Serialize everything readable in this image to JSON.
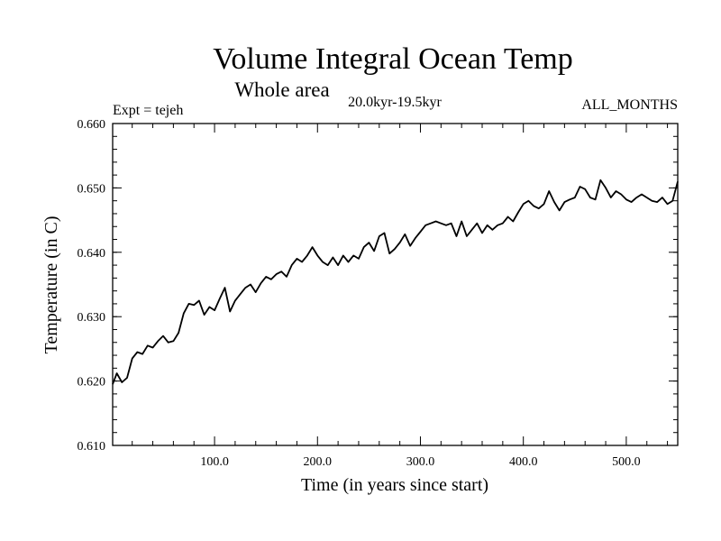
{
  "chart_data": {
    "type": "line",
    "title": "Volume Integral Ocean Temp",
    "subtitle": "Whole area",
    "period_label": "20.0kyr-19.5kyr",
    "left_annotation": "Expt = tejeh",
    "right_annotation": "ALL_MONTHS",
    "xlabel": "Time (in years since start)",
    "ylabel": "Temperature (in C)",
    "xlim": [
      1,
      550
    ],
    "ylim": [
      0.61,
      0.66
    ],
    "x_ticks": [
      100,
      200,
      300,
      400,
      500
    ],
    "x_tick_labels": [
      "100.0",
      "200.0",
      "300.0",
      "400.0",
      "500.0"
    ],
    "y_ticks": [
      0.61,
      0.62,
      0.63,
      0.64,
      0.65,
      0.66
    ],
    "y_tick_labels": [
      "0.610",
      "0.620",
      "0.630",
      "0.640",
      "0.650",
      "0.660"
    ],
    "line_color": "#000000",
    "series": [
      {
        "name": "Volume integral ocean temperature",
        "x": [
          1,
          5,
          10,
          15,
          20,
          25,
          30,
          35,
          40,
          45,
          50,
          55,
          60,
          65,
          70,
          75,
          80,
          85,
          90,
          95,
          100,
          105,
          110,
          115,
          120,
          125,
          130,
          135,
          140,
          145,
          150,
          155,
          160,
          165,
          170,
          175,
          180,
          185,
          190,
          195,
          200,
          205,
          210,
          215,
          220,
          225,
          230,
          235,
          240,
          245,
          250,
          255,
          260,
          265,
          270,
          275,
          280,
          285,
          290,
          295,
          300,
          305,
          310,
          315,
          320,
          325,
          330,
          335,
          340,
          345,
          350,
          355,
          360,
          365,
          370,
          375,
          380,
          385,
          390,
          395,
          400,
          405,
          410,
          415,
          420,
          425,
          430,
          435,
          440,
          445,
          450,
          455,
          460,
          465,
          470,
          475,
          480,
          485,
          490,
          495,
          500,
          505,
          510,
          515,
          520,
          525,
          530,
          535,
          540,
          545,
          550
        ],
        "values": [
          0.6195,
          0.6212,
          0.6198,
          0.6205,
          0.6235,
          0.6245,
          0.6242,
          0.6255,
          0.6252,
          0.6262,
          0.627,
          0.626,
          0.6262,
          0.6275,
          0.6305,
          0.632,
          0.6318,
          0.6325,
          0.6303,
          0.6315,
          0.631,
          0.6328,
          0.6345,
          0.6308,
          0.6325,
          0.6335,
          0.6345,
          0.635,
          0.6338,
          0.6352,
          0.6362,
          0.6358,
          0.6366,
          0.637,
          0.6362,
          0.638,
          0.639,
          0.6385,
          0.6395,
          0.6408,
          0.6395,
          0.6385,
          0.638,
          0.6392,
          0.638,
          0.6395,
          0.6385,
          0.6395,
          0.639,
          0.6408,
          0.6415,
          0.6402,
          0.6425,
          0.643,
          0.6398,
          0.6405,
          0.6415,
          0.6428,
          0.641,
          0.6422,
          0.6432,
          0.6442,
          0.6445,
          0.6448,
          0.6445,
          0.6442,
          0.6445,
          0.6425,
          0.6448,
          0.6425,
          0.6435,
          0.6445,
          0.643,
          0.6442,
          0.6435,
          0.6442,
          0.6445,
          0.6455,
          0.6448,
          0.6462,
          0.6475,
          0.648,
          0.6472,
          0.6468,
          0.6475,
          0.6495,
          0.6478,
          0.6465,
          0.6478,
          0.6482,
          0.6485,
          0.6502,
          0.6498,
          0.6485,
          0.6482,
          0.6512,
          0.65,
          0.6485,
          0.6495,
          0.649,
          0.6482,
          0.6478,
          0.6485,
          0.649,
          0.6485,
          0.648,
          0.6478,
          0.6485,
          0.6475,
          0.648,
          0.651
        ]
      }
    ]
  }
}
